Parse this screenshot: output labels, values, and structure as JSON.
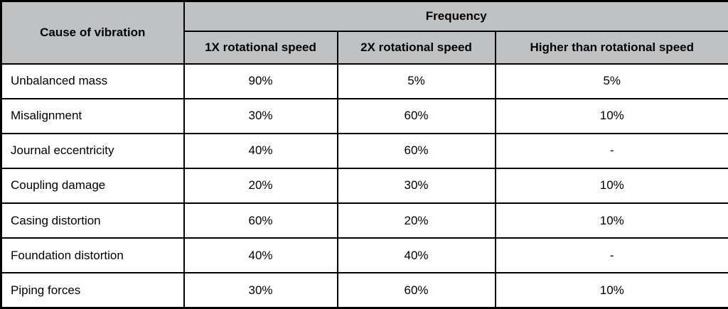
{
  "table": {
    "header": {
      "cause_label": "Cause of vibration",
      "group_label": "Frequency",
      "columns": [
        "1X rotational speed",
        "2X rotational speed",
        "Higher than rotational speed"
      ]
    },
    "rows": [
      {
        "cause": "Unbalanced mass",
        "values": [
          "90%",
          "5%",
          "5%"
        ]
      },
      {
        "cause": "Misalignment",
        "values": [
          "30%",
          "60%",
          "10%"
        ]
      },
      {
        "cause": "Journal eccentricity",
        "values": [
          "40%",
          "60%",
          "-"
        ]
      },
      {
        "cause": "Coupling damage",
        "values": [
          "20%",
          "30%",
          "10%"
        ]
      },
      {
        "cause": "Casing distortion",
        "values": [
          "60%",
          "20%",
          "10%"
        ]
      },
      {
        "cause": "Foundation distortion",
        "values": [
          "40%",
          "40%",
          "-"
        ]
      },
      {
        "cause": "Piping forces",
        "values": [
          "30%",
          "60%",
          "10%"
        ]
      }
    ],
    "colors": {
      "header_bg": "#bfc1c3",
      "border": "#000000",
      "body_bg": "#ffffff",
      "text": "#000000"
    }
  }
}
